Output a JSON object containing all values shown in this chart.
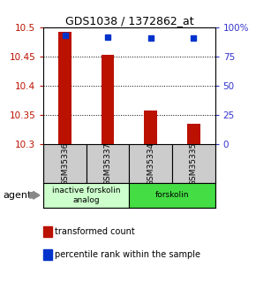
{
  "title": "GDS1038 / 1372862_at",
  "samples": [
    "GSM35336",
    "GSM35337",
    "GSM35334",
    "GSM35335"
  ],
  "bar_values": [
    10.493,
    10.453,
    10.358,
    10.335
  ],
  "percentile_values": [
    93,
    92,
    91,
    91
  ],
  "ylim_left": [
    10.3,
    10.5
  ],
  "ylim_right": [
    0,
    100
  ],
  "yticks_left": [
    10.3,
    10.35,
    10.4,
    10.45,
    10.5
  ],
  "yticks_right": [
    0,
    25,
    50,
    75,
    100
  ],
  "ytick_labels_right": [
    "0",
    "25",
    "50",
    "75",
    "100%"
  ],
  "bar_color": "#bb1100",
  "percentile_color": "#0033cc",
  "bar_bottom": 10.3,
  "grid_values": [
    10.35,
    10.4,
    10.45
  ],
  "groups": [
    {
      "label": "inactive forskolin\nanalog",
      "start": 0,
      "end": 2,
      "color": "#ccffcc"
    },
    {
      "label": "forskolin",
      "start": 2,
      "end": 4,
      "color": "#44dd44"
    }
  ],
  "agent_label": "agent",
  "legend": [
    {
      "color": "#bb1100",
      "label": "transformed count"
    },
    {
      "color": "#0033cc",
      "label": "percentile rank within the sample"
    }
  ],
  "title_color": "#000000",
  "left_tick_color": "#bb1100",
  "right_tick_color": "#3333cc",
  "sample_bg": "#cccccc",
  "bar_width": 0.3
}
